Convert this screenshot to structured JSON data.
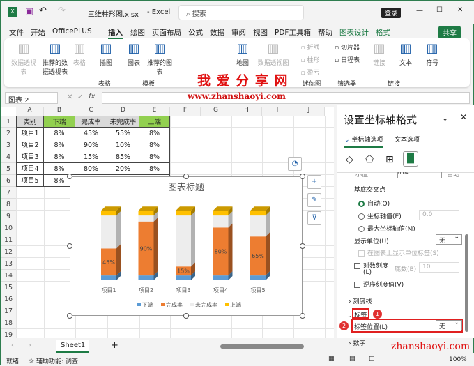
{
  "titlebar": {
    "filename": "三维柱形图.xlsx",
    "app": "Excel",
    "search_placeholder": "搜索",
    "login": "登录",
    "min": "—",
    "max": "☐",
    "close": "✕"
  },
  "menu": {
    "tabs": [
      "文件",
      "开始",
      "OfficePLUS",
      "插入",
      "绘图",
      "页面布局",
      "公式",
      "数据",
      "审阅",
      "视图",
      "PDF工具箱",
      "帮助",
      "图表设计",
      "格式"
    ],
    "active": "插入",
    "share": "共享"
  },
  "ribbon": {
    "items": [
      "数据透视表",
      "推荐的数据透视表",
      "表格",
      "插图",
      "图表",
      "推荐的图表",
      "地图",
      "数据透视图",
      "折线",
      "柱形",
      "盈亏",
      "切片器",
      "日程表",
      "链接",
      "文本",
      "符号"
    ],
    "groups": [
      "表格",
      "模板",
      "迷你图",
      "筛选器",
      "链接"
    ]
  },
  "watermark": {
    "title": "我 爱 分 享 网",
    "url": "www.zhanshaoyi.com",
    "url2": "zhanshaoyi.com"
  },
  "formula_bar": {
    "name_box": "图表 2",
    "fx": "fx",
    "value": ""
  },
  "sheet": {
    "columns": [
      "A",
      "B",
      "C",
      "D",
      "E",
      "F",
      "G",
      "H",
      "I",
      "J"
    ],
    "rows": [
      "1",
      "2",
      "3",
      "4",
      "5",
      "6",
      "7",
      "8",
      "9",
      "10",
      "11",
      "12",
      "13",
      "14",
      "15",
      "16",
      "17",
      "18",
      "19",
      "20"
    ],
    "header": [
      "类别",
      "下端",
      "完成率",
      "未完成率",
      "上端"
    ],
    "data": [
      [
        "项目1",
        "8%",
        "45%",
        "55%",
        "8%"
      ],
      [
        "项目2",
        "8%",
        "90%",
        "10%",
        "8%"
      ],
      [
        "项目3",
        "8%",
        "15%",
        "85%",
        "8%"
      ],
      [
        "项目4",
        "8%",
        "80%",
        "20%",
        "8%"
      ],
      [
        "项目5",
        "8%",
        "65%",
        "35%",
        "8%"
      ]
    ],
    "header_fills": [
      "#d9d9d9",
      "#92d050",
      "#d9d9d9",
      "#d9d9d9",
      "#92d050"
    ]
  },
  "chart_data": {
    "type": "bar",
    "stacked": true,
    "3d": true,
    "title": "图表标题",
    "categories": [
      "项目1",
      "项目2",
      "项目3",
      "项目4",
      "项目5"
    ],
    "series": [
      {
        "name": "下端",
        "values": [
          8,
          8,
          8,
          8,
          8
        ],
        "color": "#5b9bd5"
      },
      {
        "name": "完成率",
        "values": [
          45,
          90,
          15,
          80,
          65
        ],
        "color": "#ed7d31",
        "labels": [
          "45%",
          "90%",
          "15%",
          "80%",
          "65%"
        ]
      },
      {
        "name": "未完成率",
        "values": [
          55,
          10,
          85,
          20,
          35
        ],
        "color": "#ededed"
      },
      {
        "name": "上端",
        "values": [
          8,
          8,
          8,
          8,
          8
        ],
        "color": "#ffc000"
      }
    ],
    "legend": "bottom",
    "grid": false
  },
  "pane": {
    "title": "设置坐标轴格式",
    "tab1": "坐标轴选项",
    "tab2": "文本选项",
    "partial_top": "小值",
    "partial_val": "0.04",
    "partial_auto": "自动",
    "cross_label": "基底交叉点",
    "r_auto": "自动(O)",
    "r_axis": "坐标轴值(E)",
    "r_axis_val": "0.0",
    "r_max": "最大坐标轴值(M)",
    "unit_label": "显示单位(U)",
    "unit_val": "无",
    "unit_chk": "在图表上显示单位标签(S)",
    "log_label": "对数刻度",
    "log_l": "(L)",
    "base_label": "底数(B)",
    "base_val": "10",
    "reverse": "逆序刻度值(V)",
    "ticks": "刻度线",
    "labels": "标签",
    "label_pos": "标签位置(L)",
    "label_pos_val": "无",
    "number": "数字",
    "badge1": "1",
    "badge2": "2"
  },
  "sheetbar": {
    "tab": "Sheet1",
    "add": "+"
  },
  "status": {
    "ready": "就绪",
    "access": "辅助功能: 调查",
    "zoom": "100%"
  }
}
